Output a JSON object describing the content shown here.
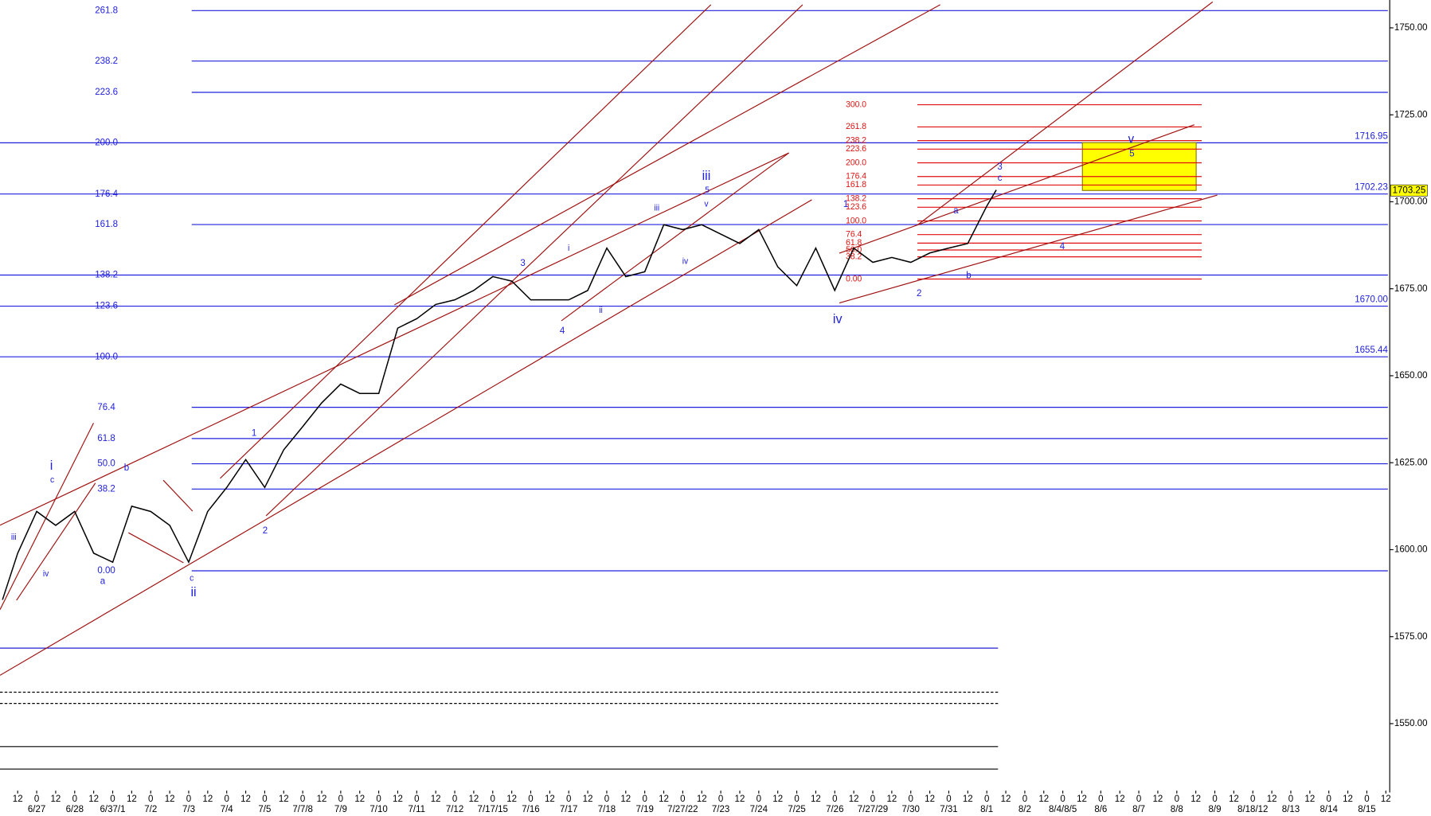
{
  "chart_data": {
    "type": "line",
    "color": "#000000",
    "x": [
      -0.9,
      -0.5,
      0,
      0.5,
      1,
      1.5,
      2,
      2.5,
      3,
      3.5,
      4,
      4.5,
      5,
      5.5,
      6,
      6.5,
      7,
      7.5,
      8,
      8.5,
      9,
      9.5,
      10,
      10.5,
      11,
      11.5,
      12,
      12.5,
      13,
      13.5,
      14,
      14.5,
      15,
      15.5,
      16,
      16.5,
      17,
      17.5,
      18,
      18.5,
      19,
      19.5,
      20,
      20.5,
      21,
      21.5,
      22,
      22.5,
      23,
      23.5,
      24,
      24.5,
      25,
      25.25
    ],
    "values": [
      1585.6,
      1599,
      1611,
      1607,
      1611,
      1599,
      1596.4,
      1612.5,
      1611,
      1607,
      1596.4,
      1611,
      1617.9,
      1625.9,
      1617.9,
      1628.7,
      1635.4,
      1642.2,
      1647.6,
      1644.9,
      1644.9,
      1663.7,
      1666.4,
      1670.5,
      1671.8,
      1674.5,
      1678.5,
      1677.2,
      1671.8,
      1671.8,
      1671.8,
      1674.5,
      1686.7,
      1678.5,
      1679.9,
      1693.4,
      1692,
      1693.4,
      1690.7,
      1688,
      1692,
      1681.3,
      1675.9,
      1686.7,
      1674.5,
      1686.7,
      1682.6,
      1684,
      1682.6,
      1685.3,
      1686.7,
      1688,
      1698.8,
      1703.4
    ],
    "xlim": [
      -0.97,
      35.6
    ],
    "ylim": [
      1531,
      1758
    ],
    "xticks": [
      {
        "value": -0.5,
        "label": "12"
      },
      {
        "value": 0,
        "label": "0"
      },
      {
        "value": 0.5,
        "label": "12"
      },
      {
        "value": 1,
        "label": "0"
      },
      {
        "value": 1.5,
        "label": "12"
      },
      {
        "value": 2,
        "label": "0"
      },
      {
        "value": 2.5,
        "label": "12"
      },
      {
        "value": 3,
        "label": "0"
      },
      {
        "value": 3.5,
        "label": "12"
      },
      {
        "value": 4,
        "label": "0"
      },
      {
        "value": 4.5,
        "label": "12"
      },
      {
        "value": 5,
        "label": "0"
      },
      {
        "value": 5.5,
        "label": "12"
      },
      {
        "value": 6,
        "label": "0"
      },
      {
        "value": 6.5,
        "label": "12"
      },
      {
        "value": 7,
        "label": "0"
      },
      {
        "value": 7.5,
        "label": "12"
      },
      {
        "value": 8,
        "label": "0"
      },
      {
        "value": 8.5,
        "label": "12"
      },
      {
        "value": 9,
        "label": "0"
      },
      {
        "value": 9.5,
        "label": "12"
      },
      {
        "value": 10,
        "label": "0"
      },
      {
        "value": 10.5,
        "label": "12"
      },
      {
        "value": 11,
        "label": "0"
      },
      {
        "value": 11.5,
        "label": "12"
      },
      {
        "value": 12,
        "label": "0"
      },
      {
        "value": 12.5,
        "label": "12"
      },
      {
        "value": 13,
        "label": "0"
      },
      {
        "value": 13.5,
        "label": "12"
      },
      {
        "value": 14,
        "label": "0"
      },
      {
        "value": 14.5,
        "label": "12"
      },
      {
        "value": 15,
        "label": "0"
      },
      {
        "value": 15.5,
        "label": "12"
      },
      {
        "value": 16,
        "label": "0"
      },
      {
        "value": 16.5,
        "label": "12"
      },
      {
        "value": 17,
        "label": "0"
      },
      {
        "value": 17.5,
        "label": "12"
      },
      {
        "value": 18,
        "label": "0"
      },
      {
        "value": 18.5,
        "label": "12"
      },
      {
        "value": 19,
        "label": "0"
      },
      {
        "value": 19.5,
        "label": "12"
      },
      {
        "value": 20,
        "label": "0"
      },
      {
        "value": 20.5,
        "label": "12"
      },
      {
        "value": 21,
        "label": "0"
      },
      {
        "value": 21.5,
        "label": "12"
      },
      {
        "value": 22,
        "label": "0"
      },
      {
        "value": 22.5,
        "label": "12"
      },
      {
        "value": 23,
        "label": "0"
      },
      {
        "value": 23.5,
        "label": "12"
      },
      {
        "value": 24,
        "label": "0"
      },
      {
        "value": 24.5,
        "label": "12"
      },
      {
        "value": 25,
        "label": "0"
      },
      {
        "value": 25.5,
        "label": "12"
      },
      {
        "value": 26,
        "label": "0"
      },
      {
        "value": 26.5,
        "label": "12"
      },
      {
        "value": 27,
        "label": "0"
      },
      {
        "value": 27.5,
        "label": "12"
      },
      {
        "value": 28,
        "label": "0"
      },
      {
        "value": 28.5,
        "label": "12"
      },
      {
        "value": 29,
        "label": "0"
      },
      {
        "value": 29.5,
        "label": "12"
      },
      {
        "value": 30,
        "label": "0"
      },
      {
        "value": 30.5,
        "label": "12"
      },
      {
        "value": 31,
        "label": "0"
      },
      {
        "value": 31.5,
        "label": "12"
      },
      {
        "value": 32,
        "label": "0"
      },
      {
        "value": 32.5,
        "label": "12"
      },
      {
        "value": 33,
        "label": "0"
      },
      {
        "value": 33.5,
        "label": "12"
      },
      {
        "value": 34,
        "label": "0"
      },
      {
        "value": 34.5,
        "label": "12"
      },
      {
        "value": 35,
        "label": "0"
      },
      {
        "value": 35.5,
        "label": "12"
      }
    ],
    "date_ticks": [
      {
        "value": 0,
        "label": "6/27"
      },
      {
        "value": 1,
        "label": "6/28"
      },
      {
        "value": 2,
        "label": "6/37/1"
      },
      {
        "value": 3,
        "label": "7/2"
      },
      {
        "value": 4,
        "label": "7/3"
      },
      {
        "value": 5,
        "label": "7/4"
      },
      {
        "value": 6,
        "label": "7/5"
      },
      {
        "value": 7,
        "label": "7/7/8"
      },
      {
        "value": 8,
        "label": "7/9"
      },
      {
        "value": 9,
        "label": "7/10"
      },
      {
        "value": 10,
        "label": "7/11"
      },
      {
        "value": 11,
        "label": "7/12"
      },
      {
        "value": 12,
        "label": "7/17/15"
      },
      {
        "value": 13,
        "label": "7/16"
      },
      {
        "value": 14,
        "label": "7/17"
      },
      {
        "value": 15,
        "label": "7/18"
      },
      {
        "value": 16,
        "label": "7/19"
      },
      {
        "value": 17,
        "label": "7/27/22"
      },
      {
        "value": 18,
        "label": "7/23"
      },
      {
        "value": 19,
        "label": "7/24"
      },
      {
        "value": 20,
        "label": "7/25"
      },
      {
        "value": 21,
        "label": "7/26"
      },
      {
        "value": 22,
        "label": "7/27/29"
      },
      {
        "value": 23,
        "label": "7/30"
      },
      {
        "value": 24,
        "label": "7/31"
      },
      {
        "value": 25,
        "label": "8/1"
      },
      {
        "value": 26,
        "label": "8/2"
      },
      {
        "value": 27,
        "label": "8/4/8/5"
      },
      {
        "value": 28,
        "label": "8/6"
      },
      {
        "value": 29,
        "label": "8/7"
      },
      {
        "value": 30,
        "label": "8/8"
      },
      {
        "value": 31,
        "label": "8/9"
      },
      {
        "value": 32,
        "label": "8/18/12"
      },
      {
        "value": 33,
        "label": "8/13"
      },
      {
        "value": 34,
        "label": "8/14"
      },
      {
        "value": 35,
        "label": "8/15"
      }
    ],
    "yticks": [
      {
        "value": 1550,
        "label": "1550.00"
      },
      {
        "value": 1575,
        "label": "1575.00"
      },
      {
        "value": 1600,
        "label": "1600.00"
      },
      {
        "value": 1625,
        "label": "1625.00"
      },
      {
        "value": 1650,
        "label": "1650.00"
      },
      {
        "value": 1675,
        "label": "1675.00"
      },
      {
        "value": 1700,
        "label": "1700.00"
      },
      {
        "value": 1725,
        "label": "1725.00"
      },
      {
        "value": 1750,
        "label": "1750.00"
      }
    ],
    "fib_levels": [
      {
        "label": "261.8",
        "price": 1754.96
      },
      {
        "label": "238.2",
        "price": 1740.45
      },
      {
        "label": "223.6",
        "price": 1731.46
      },
      {
        "label": "200.0",
        "price": 1716.95
      },
      {
        "label": "176.4",
        "price": 1702.23
      },
      {
        "label": "161.8",
        "price": 1693.45
      },
      {
        "label": "138.2",
        "price": 1678.94
      },
      {
        "label": "123.6",
        "price": 1670
      },
      {
        "label": "100.0",
        "price": 1655.44
      },
      {
        "label": "76.4",
        "price": 1640.92
      },
      {
        "label": "61.8",
        "price": 1631.94
      },
      {
        "label": "50.0",
        "price": 1624.69
      },
      {
        "label": "38.2",
        "price": 1617.43
      },
      {
        "label": "0.00",
        "price": 1593.93
      }
    ],
    "fib_price_labels": [
      {
        "value": 1716.95,
        "label": "1716.95"
      },
      {
        "value": 1702.23,
        "label": "1702.23"
      },
      {
        "value": 1670,
        "label": "1670.00"
      },
      {
        "value": 1655.44,
        "label": "1655.44"
      }
    ],
    "target_fib_levels": [
      {
        "label": "300.0",
        "price": 1727.9
      },
      {
        "label": "261.8",
        "price": 1721.52
      },
      {
        "label": "238.2",
        "price": 1717.58
      },
      {
        "label": "223.6",
        "price": 1715.14
      },
      {
        "label": "200.0",
        "price": 1711.2
      },
      {
        "label": "176.4",
        "price": 1707.26
      },
      {
        "label": "161.8",
        "price": 1704.82
      },
      {
        "label": "138.2",
        "price": 1700.88
      },
      {
        "label": "123.6",
        "price": 1698.44
      },
      {
        "label": "100.0",
        "price": 1694.5
      },
      {
        "label": "76.4",
        "price": 1690.56
      },
      {
        "label": "61.8",
        "price": 1688.12
      },
      {
        "label": "50.0",
        "price": 1686.15
      },
      {
        "label": "38.2",
        "price": 1684.18
      },
      {
        "label": "0.00",
        "price": 1677.8
      }
    ],
    "target_zone": [
      1703.25,
      1717
    ],
    "last_price": {
      "value": 1703.25,
      "label": "1703.25"
    },
    "wave_labels": [
      "iii",
      "iv",
      "i",
      "c",
      "b",
      "a",
      "ii",
      "c",
      "1",
      "2",
      "3",
      "4",
      "i",
      "ii",
      "iii",
      "iv",
      "v",
      "5",
      "iii",
      "iv",
      "1",
      "2",
      "a",
      "b",
      "c",
      "3",
      "4",
      "v",
      "5"
    ]
  }
}
